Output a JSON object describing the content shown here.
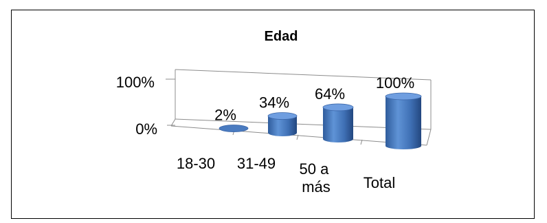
{
  "chart_data": {
    "type": "bar",
    "title": "Edad",
    "categories": [
      "18-30",
      "31-49",
      "50 a más",
      "Total"
    ],
    "values": [
      2,
      34,
      64,
      100
    ],
    "data_labels": [
      "2%",
      "34%",
      "64%",
      "100%"
    ],
    "y_ticks": [
      "100%",
      "0%"
    ],
    "ylim": [
      0,
      100
    ],
    "grid": false,
    "legend": "none",
    "style": "3d-cylinder",
    "bar_color": "#4a7bc0"
  }
}
